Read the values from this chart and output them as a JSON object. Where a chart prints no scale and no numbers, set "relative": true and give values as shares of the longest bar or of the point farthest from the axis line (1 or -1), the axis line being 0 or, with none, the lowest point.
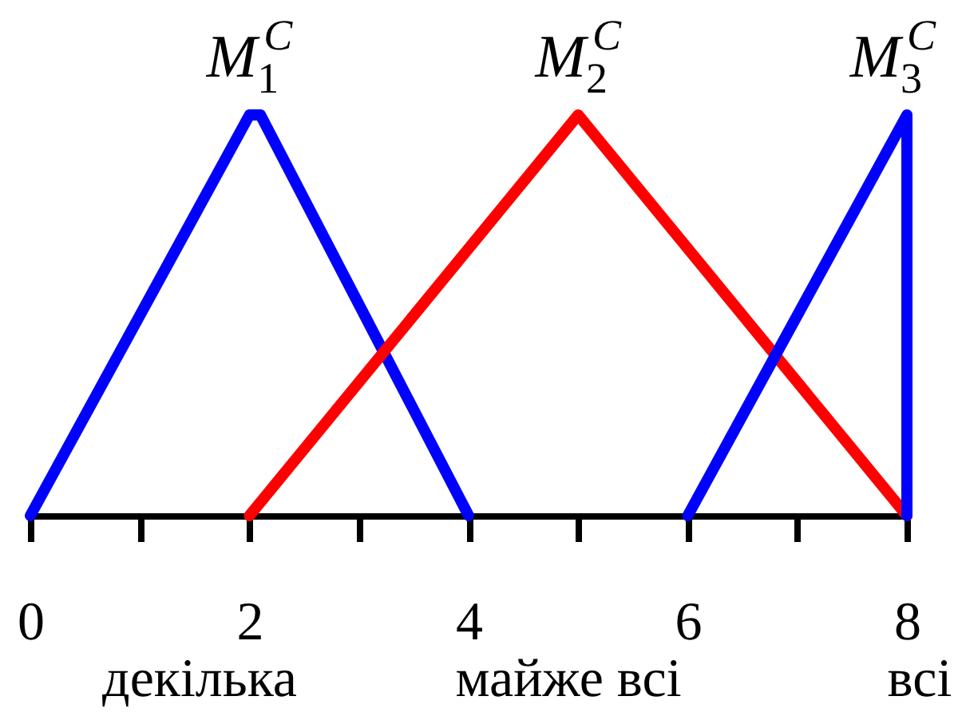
{
  "chart_data": {
    "type": "line",
    "relative": true,
    "xlim": [
      0,
      8
    ],
    "xticks": [
      0,
      {
        "value": 1,
        "label": null
      },
      2,
      {
        "value": 3,
        "label": null
      },
      4,
      {
        "value": 5,
        "label": null
      },
      6,
      {
        "value": 7,
        "label": null
      },
      8
    ],
    "tick_labels": "x",
    "series": [
      {
        "name": "M$_{1}$$^{C}$",
        "color": "#0000ff",
        "x": [
          0,
          2,
          2.1,
          4
        ],
        "values": [
          0,
          1,
          1,
          0
        ]
      },
      {
        "name": "M$_{2}$$^{C}$",
        "color": "#ff0000",
        "x": [
          2,
          5,
          8
        ],
        "values": [
          0,
          1,
          0
        ]
      },
      {
        "name": "M$_{3}$$^{C}$",
        "color": "#0000ff",
        "x": [
          6,
          8,
          8
        ],
        "values": [
          0,
          1,
          0
        ]
      }
    ],
    "annotations": [
      "декілька",
      "майже всі",
      "всі"
    ],
    "grid": false,
    "line_style": "solid"
  }
}
